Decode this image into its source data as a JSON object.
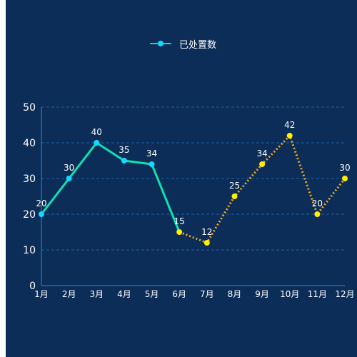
{
  "chart_data": {
    "type": "line",
    "legend": {
      "label": "已处置数",
      "position": "top-center"
    },
    "categories": [
      "1月",
      "2月",
      "3月",
      "4月",
      "5月",
      "6月",
      "7月",
      "8月",
      "9月",
      "10月",
      "11月",
      "12月"
    ],
    "series": [
      {
        "name": "已处置数",
        "values": [
          20,
          30,
          40,
          35,
          34,
          15,
          12,
          25,
          34,
          42,
          20,
          30
        ]
      }
    ],
    "solid_segment_points": [
      1,
      6
    ],
    "dotted_segment_points": [
      6,
      12
    ],
    "ylim": [
      0,
      50
    ],
    "yticks": [
      0,
      10,
      20,
      30,
      40,
      50
    ],
    "grid": "horizontal-dashed",
    "colors": {
      "background": "#0b2d57",
      "solid_line": "#10e0b0",
      "solid_marker": "#13d8ff",
      "dotted_line": "#f5a623",
      "dotted_marker": "#ffee00",
      "grid": "#1f64a8",
      "axis": "#2f8ad4",
      "text": "#ffffff"
    }
  }
}
